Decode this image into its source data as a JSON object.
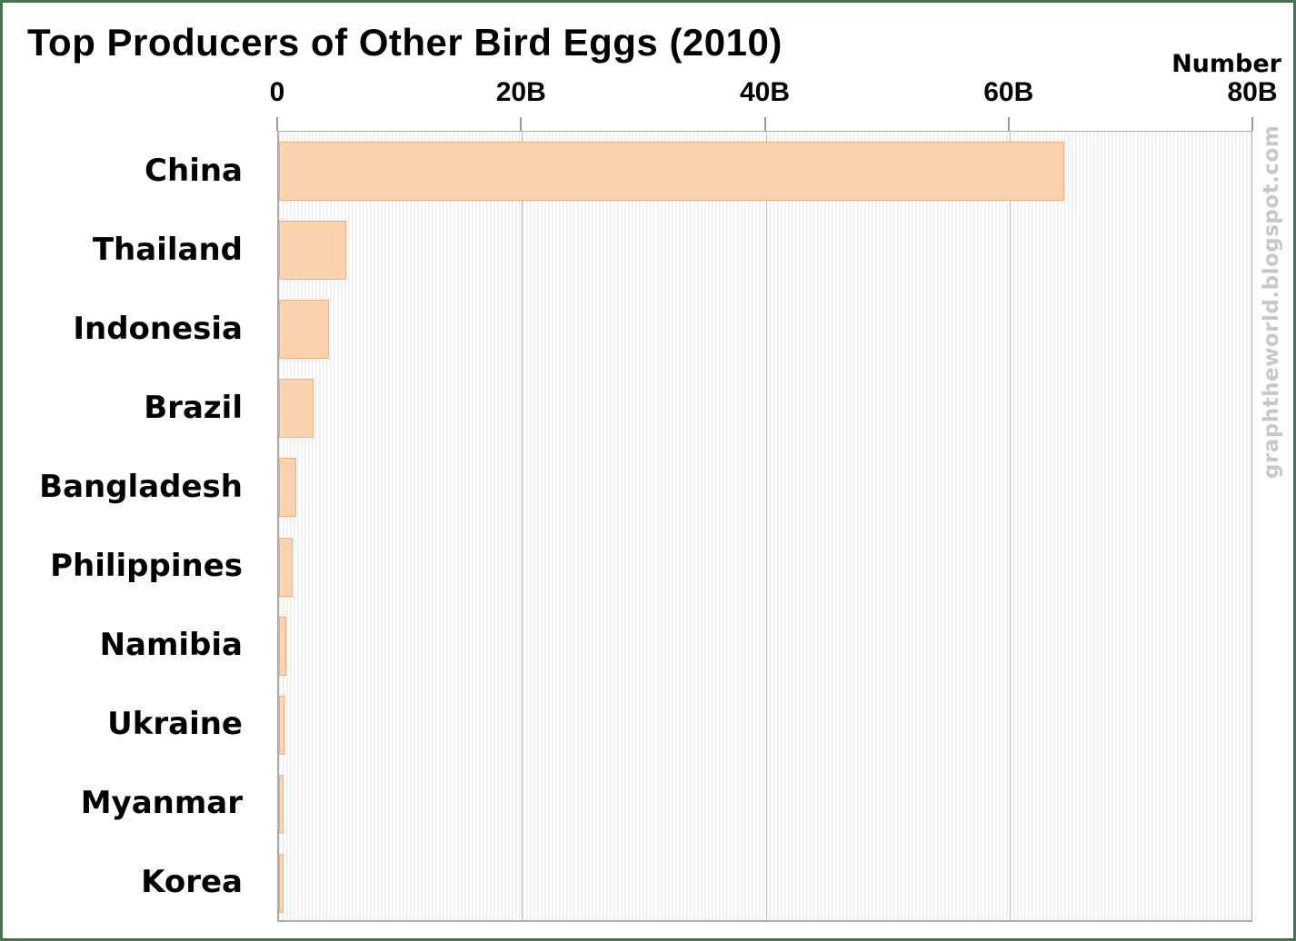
{
  "watermark": {
    "text": "graphtheworld.blogspot.com"
  },
  "colors": {
    "bar_fill": "#FBD4AF",
    "bar_border": "#F0B07E",
    "frame_border": "#4A7150",
    "plot_border": "#ACACAC",
    "gridline": "#BDBDBD",
    "stripe": "#ECECEC",
    "watermark_gray": "#C8C8C8"
  },
  "chart_data": {
    "type": "bar",
    "orientation": "horizontal",
    "title": "Top Producers of Other Bird Eggs (2010)",
    "xlabel": "Number",
    "unit": "billions",
    "categories": [
      "China",
      "Thailand",
      "Indonesia",
      "Brazil",
      "Bangladesh",
      "Philippines",
      "Namibia",
      "Ukraine",
      "Myanmar",
      "Korea"
    ],
    "values_billions": [
      64.4,
      5.5,
      4.1,
      2.8,
      1.4,
      1.1,
      0.6,
      0.45,
      0.35,
      0.35
    ],
    "x_tick_labels": [
      "0",
      "20B",
      "40B",
      "60B",
      "80B"
    ],
    "x_tick_values": [
      0,
      20,
      40,
      60,
      80
    ],
    "xlim": [
      0,
      80
    ],
    "grid": true,
    "gridline_values": [
      20,
      40,
      60
    ],
    "legend": false
  }
}
